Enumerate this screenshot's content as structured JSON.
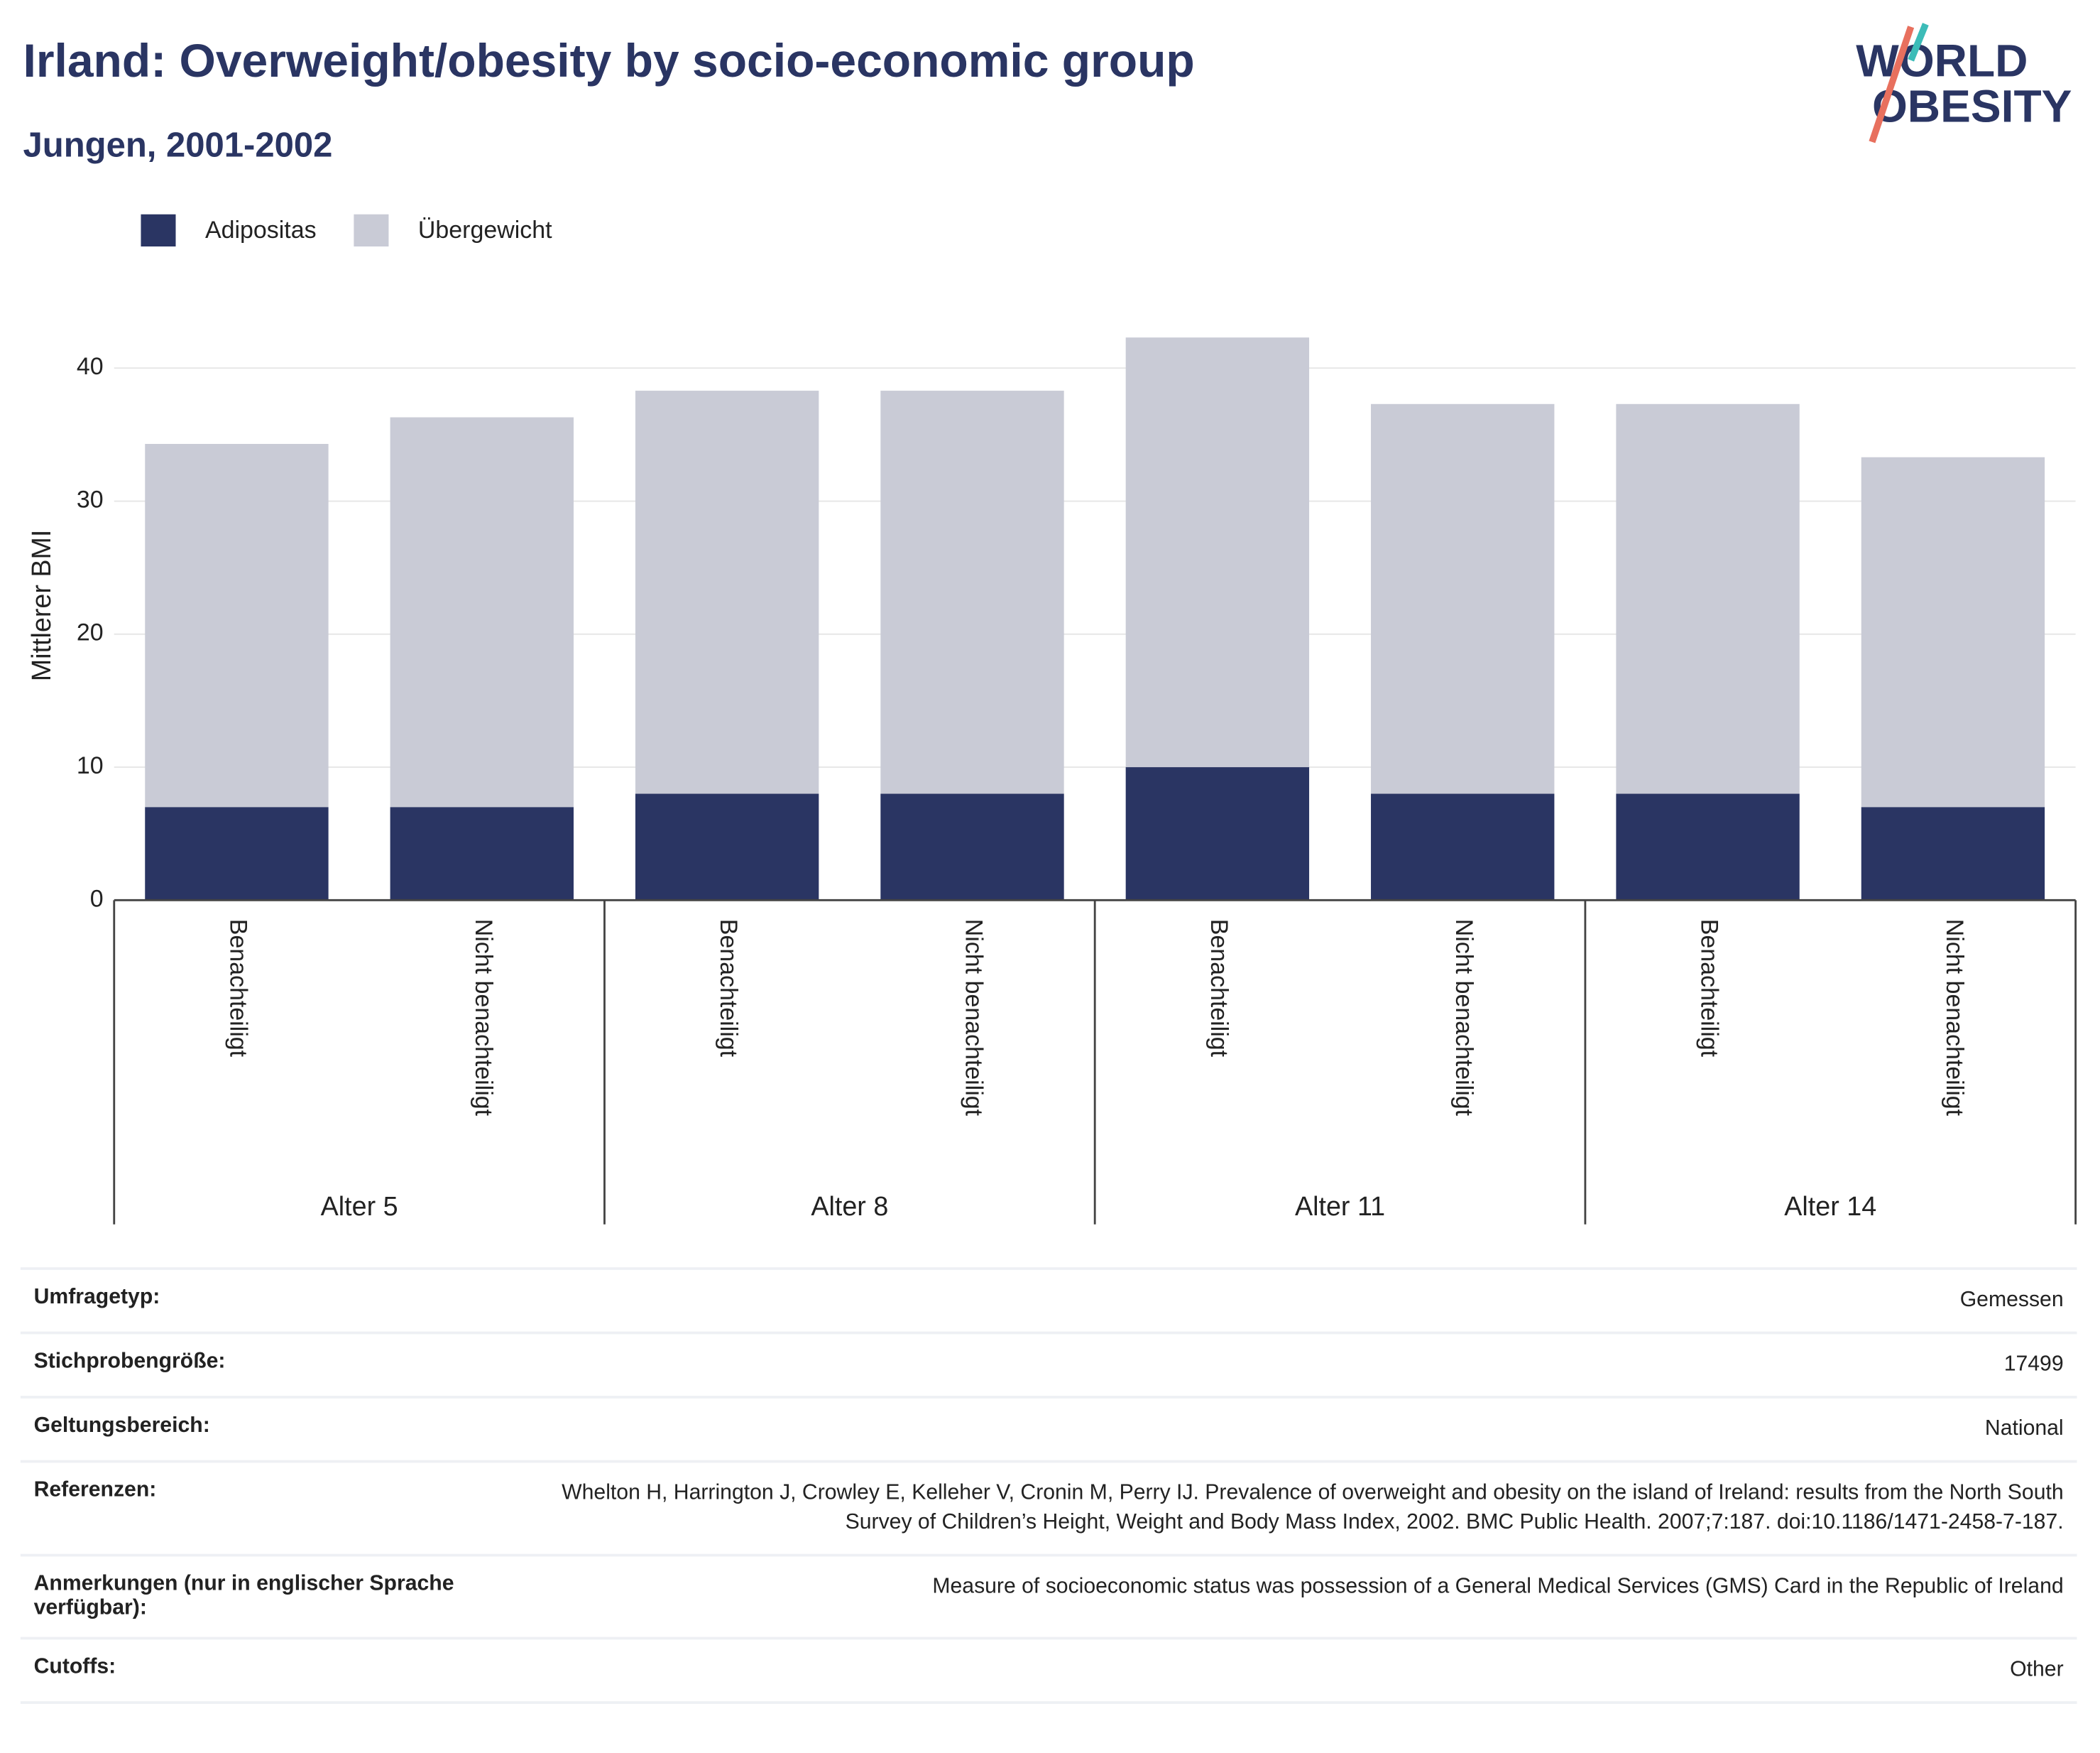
{
  "chart_data": {
    "type": "stacked-bar",
    "title": "Irland: Overweight/obesity by socio-economic group",
    "subtitle": "Jungen, 2001-2002",
    "y_label": "Mittlerer BMI",
    "categories": [
      "Benachteiligt",
      "Nicht benachteiligt",
      "Benachteiligt",
      "Nicht benachteiligt",
      "Benachteiligt",
      "Nicht benachteiligt",
      "Benachteiligt",
      "Nicht benachteiligt"
    ],
    "groups": [
      "Alter 5",
      "Alter 8",
      "Alter 11",
      "Alter 14"
    ],
    "series": [
      {
        "name": "Adipositas",
        "color": "#2a3563",
        "values": [
          7,
          7,
          8,
          8,
          10,
          8,
          8,
          7
        ]
      },
      {
        "name": "Übergewicht",
        "color": "#c9cbd6",
        "values": [
          27.3,
          29.3,
          30.3,
          30.3,
          32.3,
          29.3,
          29.3,
          26.3
        ]
      }
    ],
    "ylim": [
      0,
      43
    ],
    "yticks": [
      0,
      10,
      20,
      30,
      40
    ],
    "grid": true
  },
  "logo": {
    "line1": "WORLD",
    "line2": "OBESITY"
  },
  "table": {
    "rows": [
      [
        "Umfragetyp:",
        "Gemessen"
      ],
      [
        "Stichprobengröße:",
        "17499"
      ],
      [
        "Geltungsbereich:",
        "National"
      ],
      [
        "Referenzen:",
        "Whelton H, Harrington J, Crowley E, Kelleher V, Cronin M, Perry IJ. Prevalence of overweight and obesity on the island of Ireland: results from the North South Survey of Children’s Height, Weight and Body Mass Index, 2002. BMC Public Health. 2007;7:187. doi:10.1186/1471-2458-7-187."
      ],
      [
        "Anmerkungen (nur in englischer Sprache verfügbar):",
        "Measure of socioeconomic status was possession of a General Medical Services (GMS) Card in the Republic of Ireland"
      ],
      [
        "Cutoffs:",
        "Other"
      ]
    ]
  }
}
